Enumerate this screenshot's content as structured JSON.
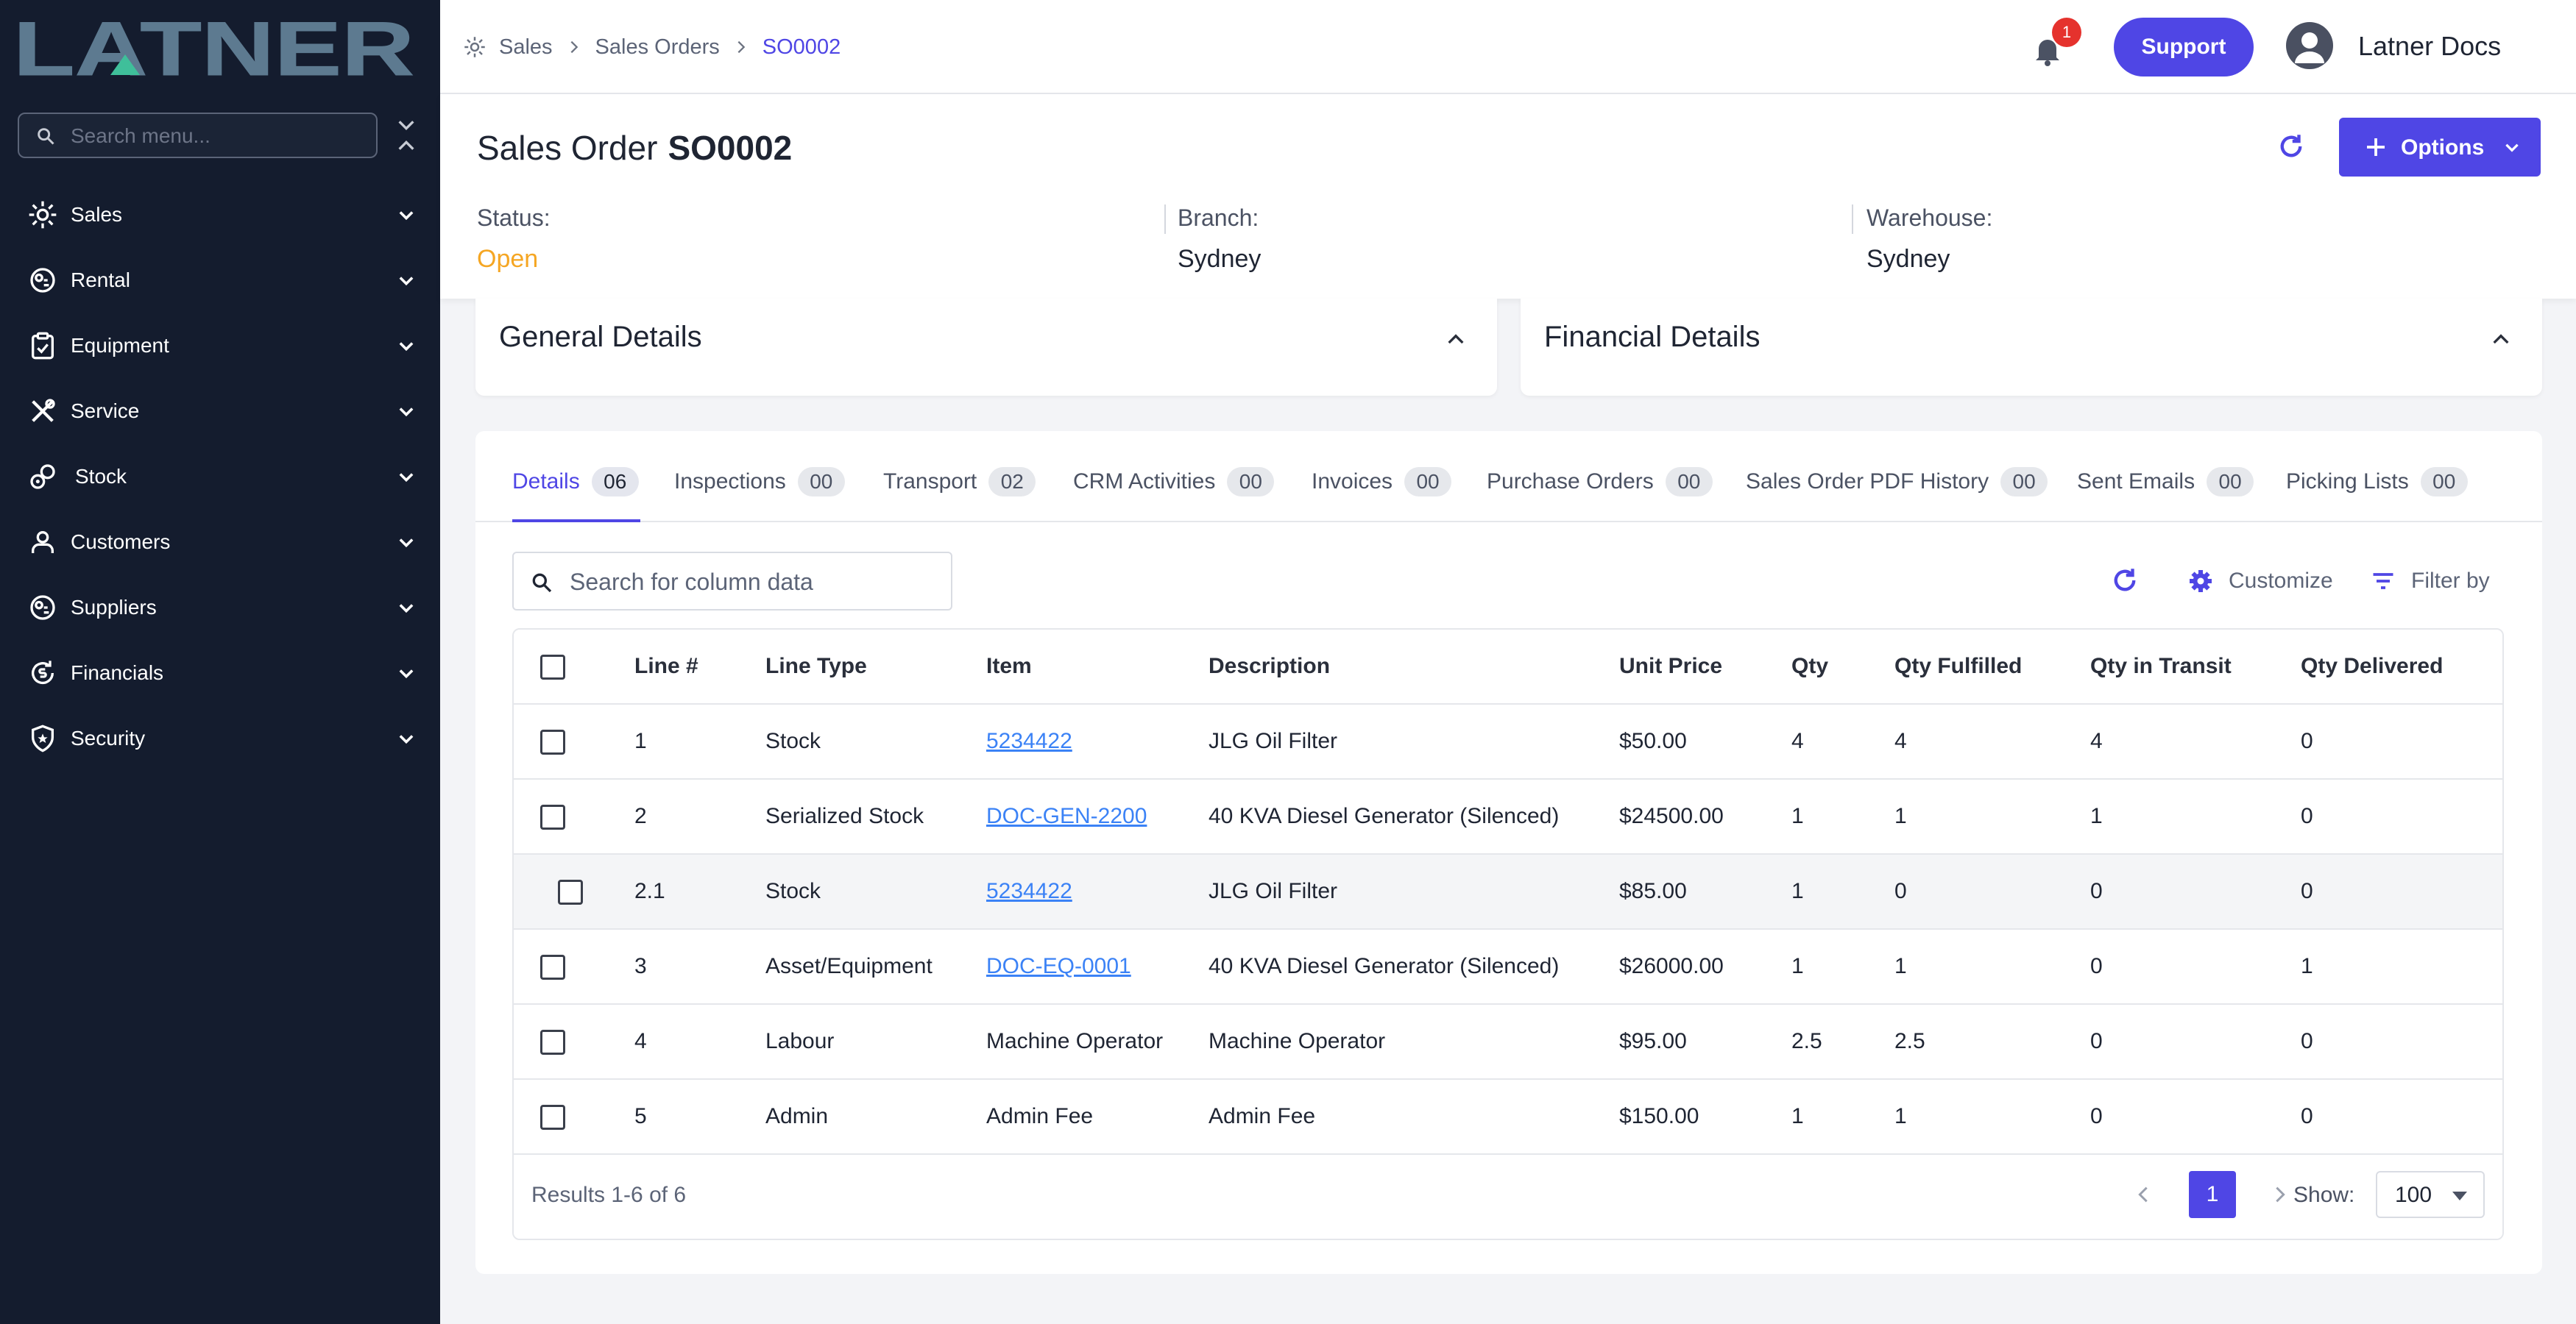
{
  "brand": {
    "name": "LATNER"
  },
  "sidebar": {
    "search_placeholder": "Search menu...",
    "items": [
      {
        "label": "Sales",
        "icon": "sun-icon"
      },
      {
        "label": "Rental",
        "icon": "rental-icon"
      },
      {
        "label": "Equipment",
        "icon": "clipboard-icon"
      },
      {
        "label": "Service",
        "icon": "tools-icon"
      },
      {
        "label": "Stock",
        "icon": "stock-icon"
      },
      {
        "label": "Customers",
        "icon": "person-icon"
      },
      {
        "label": "Suppliers",
        "icon": "supplier-icon"
      },
      {
        "label": "Financials",
        "icon": "money-icon"
      },
      {
        "label": "Security",
        "icon": "shield-icon"
      }
    ]
  },
  "topbar": {
    "breadcrumb": [
      "Sales",
      "Sales Orders",
      "SO0002"
    ],
    "notification_count": "1",
    "support_label": "Support",
    "user_name": "Latner Docs"
  },
  "header": {
    "title_prefix": "Sales Order",
    "order_number": "SO0002",
    "options_label": "Options",
    "status_label": "Status:",
    "status_value": "Open",
    "branch_label": "Branch:",
    "branch_value": "Sydney",
    "warehouse_label": "Warehouse:",
    "warehouse_value": "Sydney"
  },
  "sections": {
    "general": "General Details",
    "financial": "Financial Details"
  },
  "tabs": [
    {
      "label": "Details",
      "count": "06",
      "active": true
    },
    {
      "label": "Inspections",
      "count": "00"
    },
    {
      "label": "Transport",
      "count": "02"
    },
    {
      "label": "CRM Activities",
      "count": "00"
    },
    {
      "label": "Invoices",
      "count": "00"
    },
    {
      "label": "Purchase Orders",
      "count": "00"
    },
    {
      "label": "Sales Order PDF History",
      "count": "00"
    },
    {
      "label": "Sent Emails",
      "count": "00"
    },
    {
      "label": "Picking Lists",
      "count": "00"
    }
  ],
  "grid": {
    "search_placeholder": "Search for column data",
    "customize_label": "Customize",
    "filter_label": "Filter by",
    "columns": [
      "Line #",
      "Line Type",
      "Item",
      "Description",
      "Unit Price",
      "Qty",
      "Qty Fulfilled",
      "Qty in Transit",
      "Qty Delivered"
    ],
    "rows": [
      {
        "line": "1",
        "type": "Stock",
        "item": "5234422",
        "item_link": true,
        "description": "JLG Oil Filter",
        "unit_price": "$50.00",
        "qty": "4",
        "fulfilled": "4",
        "transit": "4",
        "delivered": "0"
      },
      {
        "line": "2",
        "type": "Serialized Stock",
        "item": "DOC-GEN-2200",
        "item_link": true,
        "description": "40 KVA Diesel Generator (Silenced)",
        "unit_price": "$24500.00",
        "qty": "1",
        "fulfilled": "1",
        "transit": "1",
        "delivered": "0"
      },
      {
        "line": "2.1",
        "type": "Stock",
        "item": "5234422",
        "item_link": true,
        "description": "JLG Oil Filter",
        "unit_price": "$85.00",
        "qty": "1",
        "fulfilled": "0",
        "transit": "0",
        "delivered": "0",
        "sub": true
      },
      {
        "line": "3",
        "type": "Asset/Equipment",
        "item": "DOC-EQ-0001",
        "item_link": true,
        "description": "40 KVA Diesel Generator (Silenced)",
        "unit_price": "$26000.00",
        "qty": "1",
        "fulfilled": "1",
        "transit": "0",
        "delivered": "1"
      },
      {
        "line": "4",
        "type": "Labour",
        "item": "Machine Operator",
        "item_link": false,
        "description": "Machine Operator",
        "unit_price": "$95.00",
        "qty": "2.5",
        "fulfilled": "2.5",
        "transit": "0",
        "delivered": "0"
      },
      {
        "line": "5",
        "type": "Admin",
        "item": "Admin Fee",
        "item_link": false,
        "description": "Admin Fee",
        "unit_price": "$150.00",
        "qty": "1",
        "fulfilled": "1",
        "transit": "0",
        "delivered": "0"
      }
    ],
    "results_text": "Results 1-6 of 6",
    "current_page": "1",
    "show_label": "Show:",
    "page_size": "100"
  },
  "colors": {
    "accent": "#4f46e5",
    "sidebar_bg": "#141c2e",
    "status_open": "#f5a623",
    "link": "#3b82f6",
    "logo": "#5d7a90",
    "logo_accent": "#3fbf9a"
  }
}
